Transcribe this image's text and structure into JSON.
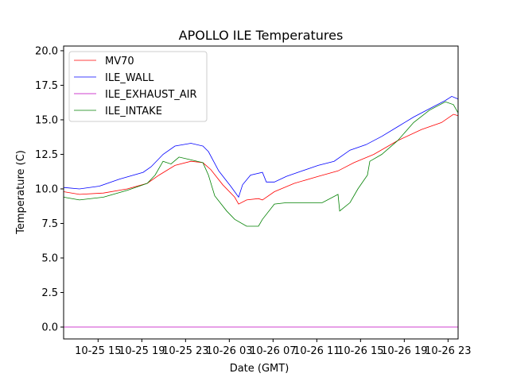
{
  "chart_data": {
    "type": "line",
    "title": "APOLLO ILE Temperatures",
    "xlabel": "Date (GMT)",
    "ylabel": "Temperature (C)",
    "x_units": "hours since 10-25 00:00",
    "xlim": [
      11.85,
      47.92
    ],
    "ylim": [
      -0.86,
      20.34
    ],
    "x_ticks": [
      15,
      19,
      23,
      27,
      31,
      35,
      39,
      43,
      47
    ],
    "x_tick_labels": [
      "10-25 15",
      "10-25 19",
      "10-25 23",
      "10-26 03",
      "10-26 07",
      "10-26 11",
      "10-26 15",
      "10-26 19",
      "10-26 23"
    ],
    "y_ticks": [
      0,
      2.5,
      5,
      7.5,
      10,
      12.5,
      15,
      17.5,
      20
    ],
    "y_tick_labels": [
      "0.0",
      "2.5",
      "5.0",
      "7.5",
      "10.0",
      "12.5",
      "15.0",
      "17.5",
      "20.0"
    ],
    "grid": false,
    "legend_position": "top-left",
    "series": [
      {
        "name": "MV70",
        "color": "#ff0000",
        "x": [
          11.85,
          13.3,
          15.49,
          17.67,
          19.49,
          20.58,
          22.03,
          23.49,
          24.58,
          25.3,
          26.4,
          27.49,
          27.85,
          28.58,
          29.67,
          30.03,
          31.12,
          32.94,
          35.12,
          36.94,
          38.4,
          40.21,
          42.4,
          44.58,
          46.4,
          47.49,
          47.92
        ],
        "y": [
          9.8,
          9.6,
          9.7,
          10.0,
          10.4,
          11.0,
          11.7,
          12.0,
          11.9,
          11.4,
          10.3,
          9.4,
          8.9,
          9.2,
          9.3,
          9.2,
          9.8,
          10.4,
          10.9,
          11.3,
          11.9,
          12.5,
          13.5,
          14.3,
          14.8,
          15.4,
          15.3
        ]
      },
      {
        "name": "ILE_WALL",
        "color": "#0000ff",
        "x": [
          11.85,
          13.3,
          15.12,
          16.94,
          19.12,
          19.85,
          20.94,
          22.03,
          23.49,
          24.58,
          25.09,
          26.03,
          27.12,
          27.85,
          28.21,
          28.94,
          30.03,
          30.39,
          31.12,
          32.21,
          33.67,
          35.12,
          36.58,
          38.03,
          39.49,
          40.94,
          42.4,
          43.85,
          45.3,
          46.76,
          47.34,
          47.92
        ],
        "y": [
          10.1,
          10.0,
          10.2,
          10.7,
          11.2,
          11.6,
          12.5,
          13.1,
          13.3,
          13.1,
          12.7,
          11.3,
          10.2,
          9.4,
          10.3,
          11.0,
          11.2,
          10.5,
          10.5,
          10.9,
          11.3,
          11.7,
          12.0,
          12.8,
          13.2,
          13.8,
          14.5,
          15.2,
          15.8,
          16.4,
          16.7,
          16.5
        ]
      },
      {
        "name": "ILE_EXHAUST_AIR",
        "color": "#bf00bf",
        "x": [
          11.85,
          47.92
        ],
        "y": [
          0.0,
          0.0
        ]
      },
      {
        "name": "ILE_INTAKE",
        "color": "#008000",
        "x": [
          11.85,
          13.3,
          15.49,
          17.67,
          19.49,
          20.21,
          20.94,
          21.67,
          22.4,
          23.49,
          24.58,
          25.09,
          25.67,
          26.76,
          27.49,
          28.58,
          29.67,
          30.03,
          31.12,
          32.21,
          33.67,
          35.49,
          36.94,
          37.09,
          38.03,
          38.76,
          39.63,
          39.85,
          40.94,
          42.4,
          43.85,
          45.3,
          46.76,
          47.49,
          47.92
        ],
        "y": [
          9.4,
          9.2,
          9.4,
          9.9,
          10.4,
          11.0,
          12.0,
          11.8,
          12.3,
          12.1,
          11.9,
          11.0,
          9.5,
          8.4,
          7.8,
          7.3,
          7.3,
          7.8,
          8.9,
          9.0,
          9.0,
          9.0,
          9.6,
          8.4,
          9.0,
          10.0,
          11.0,
          12.0,
          12.5,
          13.5,
          14.8,
          15.7,
          16.3,
          16.1,
          15.5
        ]
      }
    ]
  }
}
